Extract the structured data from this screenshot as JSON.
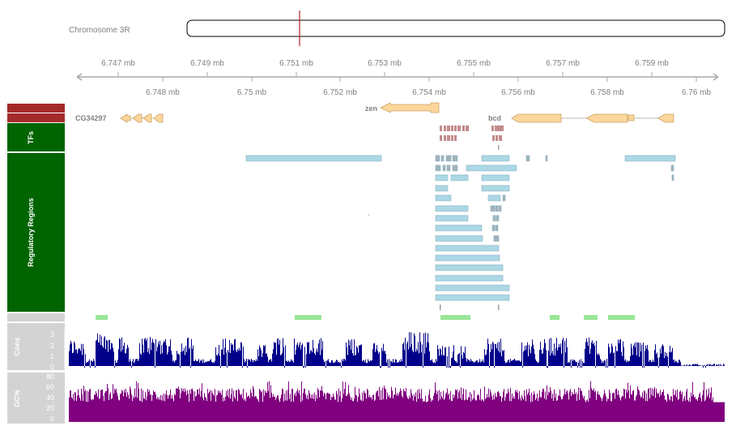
{
  "chromosome": {
    "label": "Chromosome 3R",
    "marker_color": "#b22222"
  },
  "axis": {
    "upper_ticks": [
      "6.747 mb",
      "6.749 mb",
      "6.751 mb",
      "6.753 mb",
      "6.755 mb",
      "6.757 mb",
      "6.759 mb"
    ],
    "lower_ticks": [
      "6.748 mb",
      "6.75 mb",
      "6.752 mb",
      "6.754 mb",
      "6.756 mb",
      "6.758 mb",
      "6.76 mb"
    ]
  },
  "genes": [
    {
      "label": "zen",
      "strand": "-"
    },
    {
      "label": "CG34297",
      "strand": "-"
    },
    {
      "label": "bcd",
      "strand": "-"
    }
  ],
  "track_labels": {
    "tfs": "TFs",
    "regulatory": "Regulatory Regions",
    "cons": "Cons",
    "gc": "GC%"
  },
  "cons_axis": {
    "ticks": [
      "3",
      "2",
      "1",
      "0"
    ],
    "max": 3.9
  },
  "gc_axis": {
    "ticks": [
      "80",
      "60",
      "40",
      "20",
      "0"
    ],
    "max": 85
  },
  "colors": {
    "gene": "#fcd69a",
    "gene_stroke": "#c9a36a",
    "tf": "#c48a8a",
    "regulatory": "#acd8e6",
    "regulatory_stroke": "#8ab0c0",
    "highlight": "#98e698",
    "cons": "#00008b",
    "gc": "#800080",
    "track_red": "#a52a2a",
    "track_green": "#006400",
    "track_grey": "#d3d3d3"
  }
}
